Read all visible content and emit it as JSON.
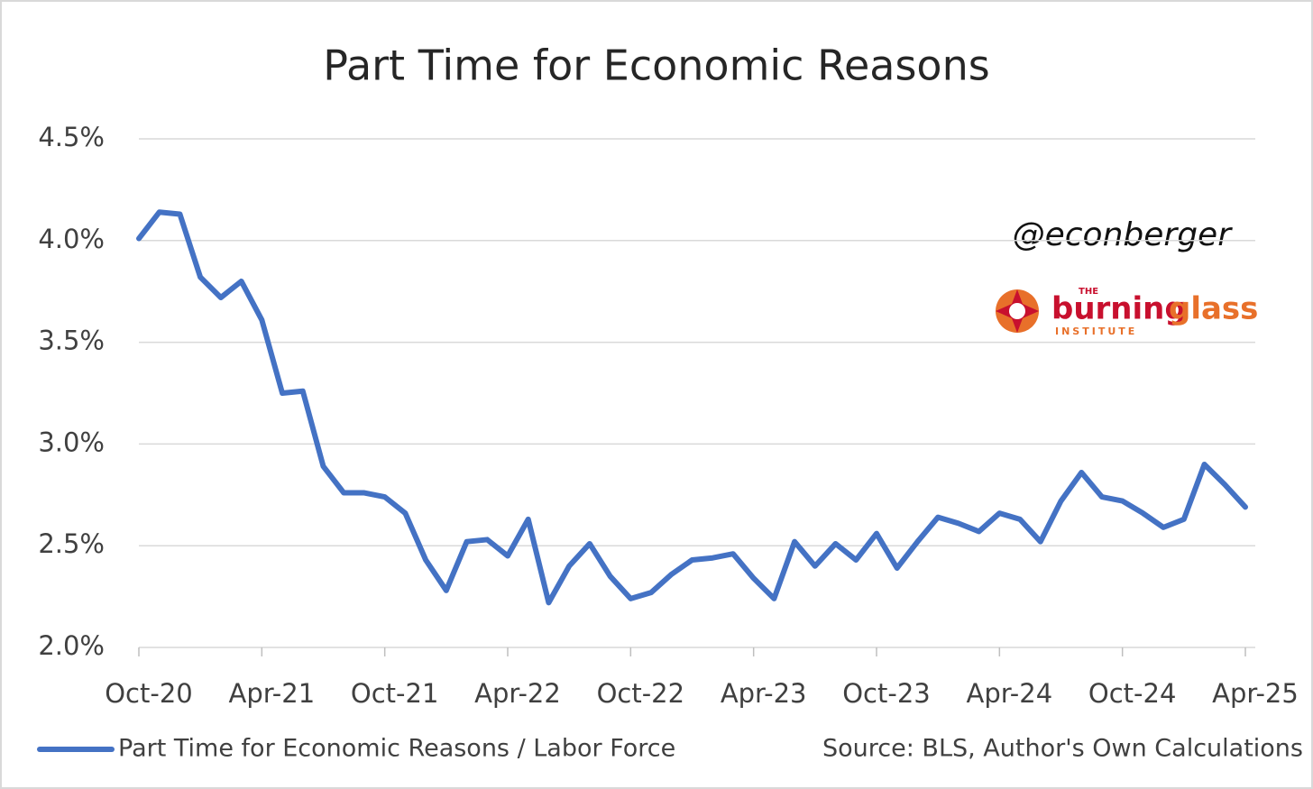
{
  "chart_data": {
    "type": "line",
    "title": "Part Time for Economic Reasons",
    "annotation": "@econberger",
    "logo": {
      "small_top": "THE",
      "word1": "burning",
      "word2": "glass",
      "small_bottom": "INSTITUTE"
    },
    "source": "Source: BLS, Author's Own Calculations",
    "categories": [
      "Oct-20",
      null,
      null,
      null,
      null,
      null,
      "Apr-21",
      null,
      null,
      null,
      null,
      null,
      "Oct-21",
      null,
      null,
      null,
      null,
      null,
      "Apr-22",
      null,
      null,
      null,
      null,
      null,
      "Oct-22",
      null,
      null,
      null,
      null,
      null,
      "Apr-23",
      null,
      null,
      null,
      null,
      null,
      "Oct-23",
      null,
      null,
      null,
      null,
      null,
      "Apr-24",
      null,
      null,
      null,
      null,
      null,
      "Oct-24",
      null,
      null,
      null,
      null,
      null,
      "Apr-25"
    ],
    "series": [
      {
        "name": "Part Time for Economic Reasons / Labor Force",
        "color": "#4472c4",
        "values": [
          4.01,
          4.14,
          4.13,
          3.82,
          3.72,
          3.8,
          3.61,
          3.25,
          3.26,
          2.89,
          2.76,
          2.76,
          2.74,
          2.66,
          2.43,
          2.28,
          2.52,
          2.53,
          2.45,
          2.63,
          2.22,
          2.4,
          2.51,
          2.35,
          2.24,
          2.27,
          2.36,
          2.43,
          2.44,
          2.46,
          2.34,
          2.24,
          2.52,
          2.4,
          2.51,
          2.43,
          2.56,
          2.39,
          2.52,
          2.64,
          2.61,
          2.57,
          2.66,
          2.63,
          2.52,
          2.72,
          2.86,
          2.74,
          2.72,
          2.66,
          2.59,
          2.63,
          2.9,
          2.8,
          2.69
        ]
      }
    ],
    "ylim": [
      2.0,
      4.5
    ],
    "yticks": [
      {
        "value": 2.0,
        "label": "2.0%"
      },
      {
        "value": 2.5,
        "label": "2.5%"
      },
      {
        "value": 3.0,
        "label": "3.0%"
      },
      {
        "value": 3.5,
        "label": "3.5%"
      },
      {
        "value": 4.0,
        "label": "4.0%"
      },
      {
        "value": 4.5,
        "label": "4.5%"
      }
    ],
    "grid": true,
    "legend": "bottom-left"
  }
}
